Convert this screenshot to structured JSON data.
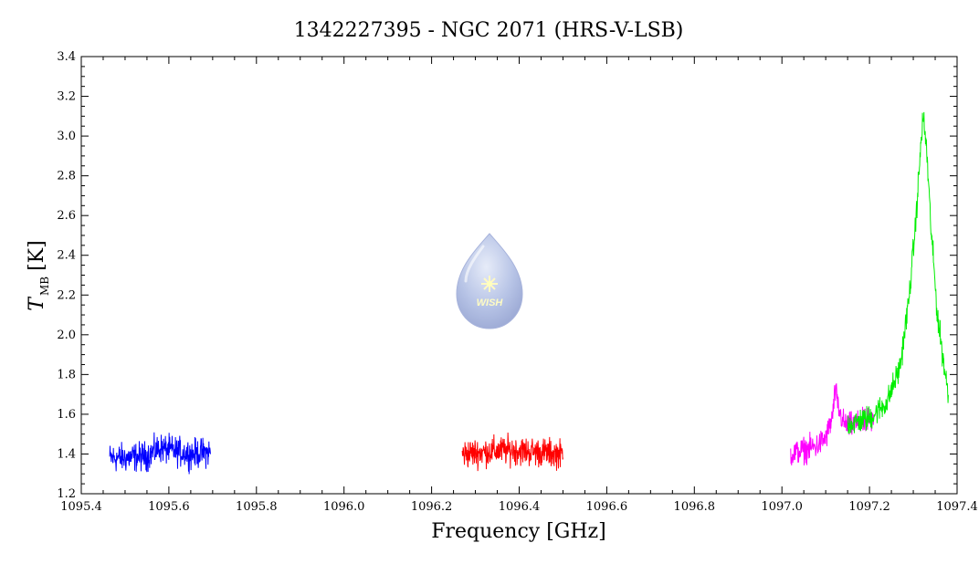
{
  "chart_data": {
    "type": "line",
    "title": "1342227395 - NGC 2071 (HRS-V-LSB)",
    "xlabel": "Frequency [GHz]",
    "ylabel_main": "T",
    "ylabel_sub": "MB",
    "ylabel_unit": "[K]",
    "xlim": [
      1095.4,
      1097.4
    ],
    "ylim": [
      1.2,
      3.4
    ],
    "xticks": [
      "1095.4",
      "1095.6",
      "1095.8",
      "1096.0",
      "1096.2",
      "1096.4",
      "1096.6",
      "1096.8",
      "1097.0",
      "1097.2",
      "1097.4"
    ],
    "yticks": [
      "1.2",
      "1.4",
      "1.6",
      "1.8",
      "2.0",
      "2.2",
      "2.4",
      "2.6",
      "2.8",
      "3.0",
      "3.2",
      "3.4"
    ],
    "grid": false,
    "series": [
      {
        "color": "#0000ff",
        "noise": 0.045,
        "x": [
          1095.465,
          1095.5,
          1095.55,
          1095.58,
          1095.6,
          1095.65,
          1095.695
        ],
        "values": [
          1.38,
          1.38,
          1.39,
          1.43,
          1.42,
          1.4,
          1.41
        ]
      },
      {
        "color": "#ff0000",
        "noise": 0.045,
        "x": [
          1096.27,
          1096.32,
          1096.38,
          1096.44,
          1096.5
        ],
        "values": [
          1.4,
          1.41,
          1.42,
          1.41,
          1.4
        ]
      },
      {
        "color": "#ff00ff",
        "noise": 0.04,
        "x": [
          1097.02,
          1097.05,
          1097.08,
          1097.1,
          1097.115,
          1097.122,
          1097.13,
          1097.14,
          1097.15,
          1097.17,
          1097.19,
          1097.21
        ],
        "values": [
          1.4,
          1.42,
          1.44,
          1.48,
          1.58,
          1.72,
          1.62,
          1.56,
          1.54,
          1.55,
          1.56,
          1.57
        ]
      },
      {
        "color": "#00ee00",
        "noise": 0.04,
        "x": [
          1097.15,
          1097.2,
          1097.24,
          1097.27,
          1097.29,
          1097.305,
          1097.315,
          1097.322,
          1097.33,
          1097.34,
          1097.355,
          1097.37,
          1097.38
        ],
        "values": [
          1.55,
          1.58,
          1.66,
          1.84,
          2.18,
          2.55,
          2.88,
          3.1,
          2.95,
          2.55,
          2.1,
          1.85,
          1.7
        ]
      }
    ]
  },
  "watermark": {
    "label": "WISH"
  }
}
